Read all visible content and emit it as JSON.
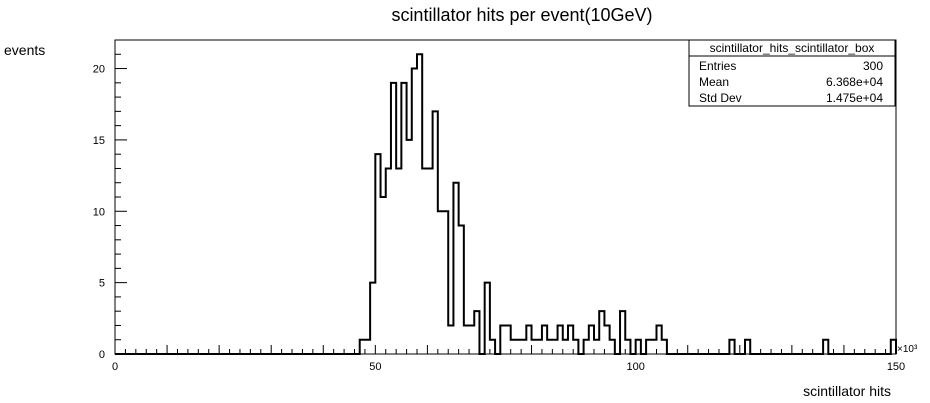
{
  "chart_data": {
    "type": "bar",
    "title": "scintillator hits per event(10GeV)",
    "xlabel": "scintillator hits",
    "ylabel": "events",
    "x_axis_exponent": "×10³",
    "xlim": [
      0,
      150000
    ],
    "ylim": [
      0,
      22
    ],
    "bin_width": 1000,
    "x_ticks": [
      0,
      50,
      100,
      150
    ],
    "y_ticks": [
      0,
      5,
      10,
      15,
      20
    ],
    "grid": false,
    "step_histogram": true,
    "x": [
      47000,
      48000,
      49000,
      50000,
      51000,
      52000,
      53000,
      54000,
      55000,
      56000,
      57000,
      58000,
      59000,
      60000,
      61000,
      62000,
      63000,
      64000,
      65000,
      66000,
      67000,
      68000,
      69000,
      70000,
      71000,
      72000,
      73000,
      74000,
      75000,
      76000,
      77000,
      78000,
      79000,
      80000,
      81000,
      82000,
      83000,
      84000,
      85000,
      86000,
      87000,
      88000,
      89000,
      90000,
      91000,
      92000,
      93000,
      94000,
      95000,
      96000,
      97000,
      98000,
      99000,
      100000,
      101000,
      102000,
      103000,
      104000,
      105000,
      118000,
      119000,
      121000,
      136000,
      149000
    ],
    "values": [
      1,
      1,
      5,
      14,
      11,
      13,
      19,
      13,
      19,
      15,
      20,
      21,
      13,
      13,
      17,
      10,
      10,
      2,
      12,
      9,
      2,
      2,
      3,
      0,
      5,
      1,
      0,
      2,
      2,
      1,
      1,
      1,
      2,
      1,
      1,
      2,
      1,
      1,
      2,
      1,
      2,
      1,
      0,
      1,
      2,
      1,
      3,
      2,
      1,
      0,
      3,
      1,
      0,
      1,
      0,
      1,
      1,
      2,
      1,
      1,
      0,
      1,
      1,
      1
    ],
    "stats_box": {
      "title": "scintillator_hits_scintillator_box",
      "rows": [
        {
          "label": "Entries",
          "value": "300"
        },
        {
          "label": "Mean",
          "value": "6.368e+04"
        },
        {
          "label": "Std Dev",
          "value": "1.475e+04"
        }
      ]
    }
  }
}
